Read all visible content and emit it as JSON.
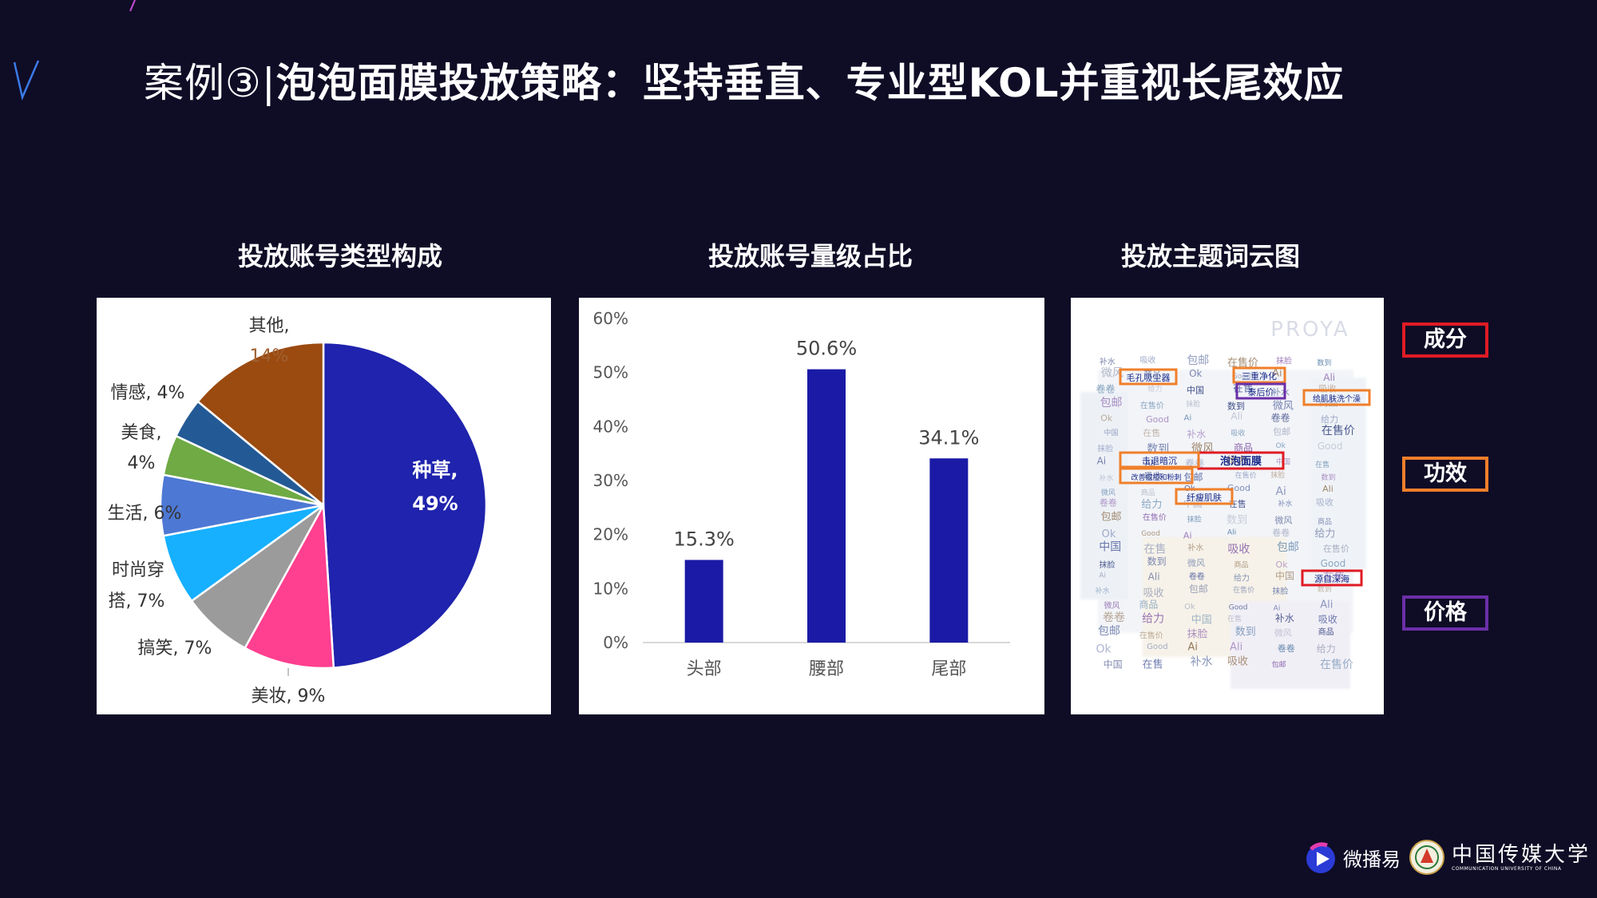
{
  "slide": {
    "title_prefix": "案例③|",
    "title_main": "泡泡面膜投放策略：坚持垂直、专业型KOL并重视长尾效应"
  },
  "colors": {
    "background": "#0f0c26",
    "bar": "#1a1aa6",
    "legend_ingredient": "#e01b24",
    "legend_effect": "#f07f2a",
    "legend_price": "#6b2fa8"
  },
  "chart_data": [
    {
      "type": "pie",
      "title": "投放账号类型构成",
      "slices": [
        {
          "label": "种草,",
          "value": 49,
          "value_text": "49%",
          "color": "#1f23ad"
        },
        {
          "label": "美妆, 9%",
          "value": 9,
          "color": "#ff3f8f"
        },
        {
          "label": "搞笑, 7%",
          "value": 7,
          "color": "#9b9b9b"
        },
        {
          "label": "时尚穿",
          "label2": "搭, 7%",
          "value": 7,
          "color": "#16b0ff"
        },
        {
          "label": "生活, 6%",
          "value": 6,
          "color": "#4d78d4"
        },
        {
          "label": "美食,",
          "label2": "4%",
          "value": 4,
          "color": "#6faa44"
        },
        {
          "label": "情感, 4%",
          "value": 4,
          "color": "#235a96"
        },
        {
          "label": "其他,",
          "label2": "14%",
          "value": 14,
          "color": "#9b4a10"
        }
      ]
    },
    {
      "type": "bar",
      "title": "投放账号量级占比",
      "categories": [
        "头部",
        "腰部",
        "尾部"
      ],
      "values": [
        15.3,
        50.6,
        34.1
      ],
      "data_labels": [
        "15.3%",
        "50.6%",
        "34.1%"
      ],
      "ylim": [
        0,
        60
      ],
      "yticks": [
        "0%",
        "10%",
        "20%",
        "30%",
        "40%",
        "50%",
        "60%"
      ],
      "grid": false
    }
  ],
  "wordcloud": {
    "title": "投放主题词云图",
    "watermark": "PROYA",
    "words": [
      "毛孔吸尘器",
      "三重净化",
      "泰后价",
      "给肌肤洗个澡",
      "泡泡面膜",
      "击退暗沉",
      "纤瘦肌肤",
      "源自深海",
      "改善痘痘和粉刺",
      "补水",
      "吸收",
      "包邮",
      "在售价",
      "抹脸",
      "数到",
      "微风",
      "商品",
      "Ok",
      "Good",
      "Ai",
      "Ali",
      "卷卷",
      "给力",
      "中国",
      "在售"
    ]
  },
  "legend": {
    "ingredient": "成分",
    "effect": "功效",
    "price": "价格"
  },
  "logos": {
    "weibo_yi": "微播易",
    "university_cn": "中国传媒大学",
    "university_en": "COMMUNICATION UNIVERSITY OF CHINA"
  }
}
